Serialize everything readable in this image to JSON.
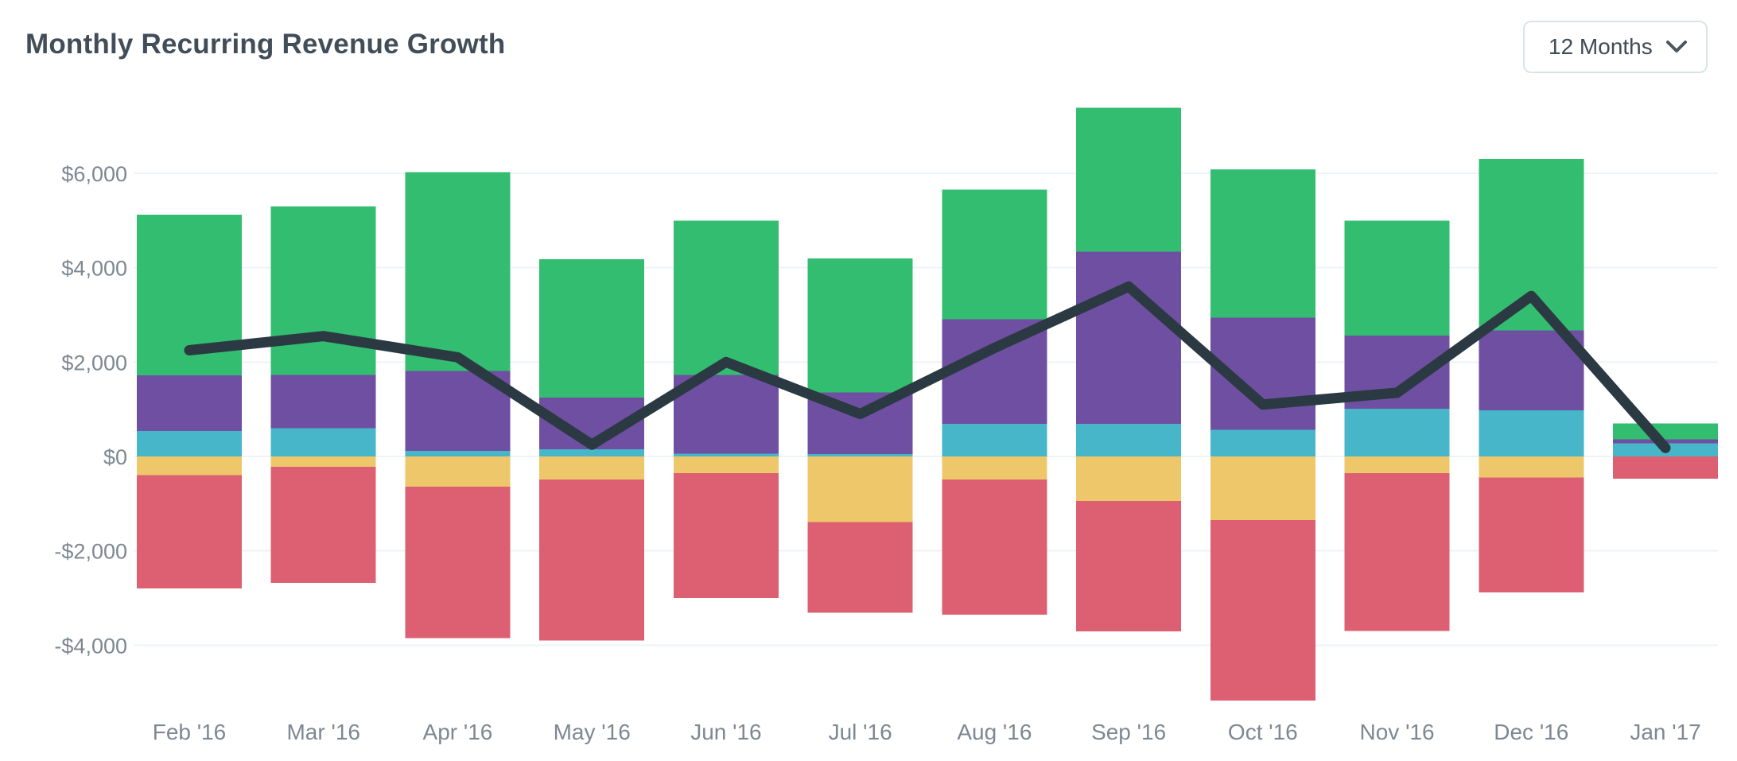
{
  "header": {
    "title": "Monthly Recurring Revenue Growth",
    "period_label": "12 Months"
  },
  "chart_data": {
    "type": "combo",
    "subtype": "stacked-bar-with-line",
    "title": "Monthly Recurring Revenue Growth",
    "x_categories": [
      "Feb '16",
      "Mar '16",
      "Apr '16",
      "May '16",
      "Jun '16",
      "Jul '16",
      "Aug '16",
      "Sep '16",
      "Oct '16",
      "Nov '16",
      "Dec '16",
      "Jan '17"
    ],
    "bar_series": [
      {
        "name": "blue",
        "color": "#46B6C8",
        "stack": "positive",
        "values": [
          540,
          600,
          120,
          150,
          60,
          50,
          695,
          695,
          565,
          1015,
          975,
          280
        ]
      },
      {
        "name": "purple",
        "color": "#6F4FA1",
        "stack": "positive",
        "values": [
          1180,
          1130,
          1690,
          1100,
          1670,
          1310,
          2215,
          3645,
          2375,
          1550,
          1695,
          80
        ]
      },
      {
        "name": "green",
        "color": "#33BD70",
        "stack": "positive",
        "values": [
          3400,
          3570,
          4210,
          2930,
          3270,
          2840,
          2740,
          3050,
          3140,
          2435,
          3630,
          340
        ]
      },
      {
        "name": "yellow",
        "color": "#EEC76B",
        "stack": "negative",
        "values": [
          -400,
          -220,
          -640,
          -490,
          -350,
          -1390,
          -490,
          -940,
          -1350,
          -350,
          -450,
          0
        ]
      },
      {
        "name": "red",
        "color": "#DD6072",
        "stack": "negative",
        "values": [
          -2400,
          -2460,
          -3210,
          -3410,
          -2650,
          -1920,
          -2860,
          -2770,
          -3820,
          -3350,
          -2430,
          -470
        ]
      }
    ],
    "positive_stack_totals": [
      5120,
      5300,
      6020,
      4180,
      5000,
      4200,
      5650,
      7390,
      6080,
      5000,
      6300,
      700
    ],
    "negative_stack_totals": [
      -2800,
      -2680,
      -3850,
      -3900,
      -3000,
      -3310,
      -3350,
      -3710,
      -5170,
      -3700,
      -2880,
      -470
    ],
    "line_series": {
      "name": "line",
      "color": "#2B3A42",
      "values": [
        2250,
        2550,
        2100,
        250,
        2000,
        900,
        2300,
        3600,
        1100,
        1350,
        3400,
        180
      ]
    },
    "y_axis": {
      "tick_values": [
        6000,
        4000,
        2000,
        0,
        -2000,
        -4000
      ],
      "tick_labels": [
        "$6,000",
        "$4,000",
        "$2,000",
        "$0",
        "-$2,000",
        "-$4,000"
      ],
      "grid": true,
      "ylim": [
        -5200,
        7500
      ]
    },
    "legend": "none",
    "colors": {
      "grid": "#EDF3F7",
      "axis_text": "#7D8893",
      "title_text": "#414E59",
      "line": "#2B3A42",
      "background": "#FFFFFF"
    }
  }
}
